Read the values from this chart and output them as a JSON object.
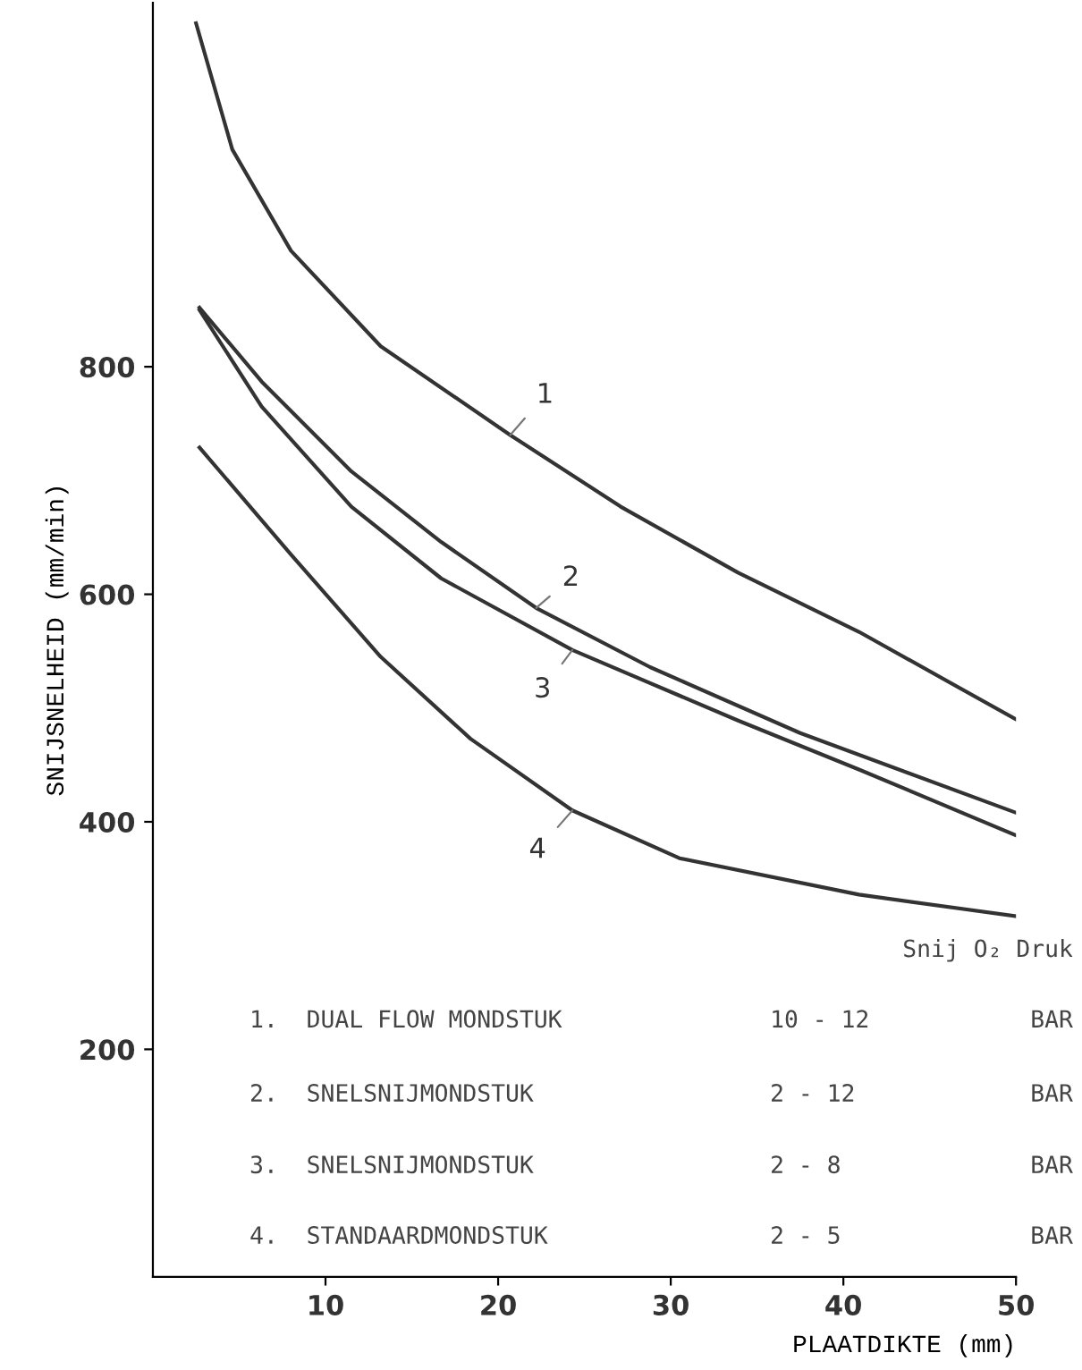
{
  "chart_data": {
    "type": "line",
    "xlabel": "PLAATDIKTE (mm)",
    "ylabel": "SNIJSNELHEID (mm/min)",
    "xlim": [
      0,
      50
    ],
    "xticks": [
      10,
      20,
      30,
      40,
      50
    ],
    "ylim": [
      0,
      1120
    ],
    "yticks": [
      200,
      400,
      600,
      800
    ],
    "grid": false,
    "legend": false,
    "marker": "none",
    "line_style": "solid",
    "series": [
      {
        "name": "1",
        "color": "#333333",
        "x": [
          2.5,
          4.6,
          8.0,
          13.2,
          20.7,
          27.1,
          33.9,
          40.9,
          50
        ],
        "values": [
          1102,
          991,
          902,
          818,
          740,
          677,
          619,
          567,
          490
        ]
      },
      {
        "name": "2",
        "color": "#333333",
        "x": [
          2.7,
          6.3,
          11.5,
          16.7,
          22.2,
          28.8,
          37.5,
          50
        ],
        "values": [
          852,
          787,
          708,
          646,
          588,
          536,
          478,
          408
        ]
      },
      {
        "name": "3",
        "color": "#333333",
        "x": [
          2.7,
          6.3,
          11.5,
          16.7,
          24.3,
          33.9,
          40.9,
          50
        ],
        "values": [
          850,
          765,
          677,
          614,
          551,
          489,
          446,
          388
        ]
      },
      {
        "name": "4",
        "color": "#333333",
        "x": [
          2.7,
          8.0,
          13.2,
          18.4,
          24.3,
          30.5,
          40.9,
          50
        ],
        "values": [
          729,
          635,
          545,
          473,
          410,
          368,
          336,
          317
        ]
      }
    ],
    "annotations": [
      "Snij O₂ Druk",
      "1.  DUAL FLOW MONDSTUK",
      "10 - 12",
      "BAR",
      "2.  SNELSNIJMONDSTUK",
      "2 - 12",
      "BAR",
      "3.  SNELSNIJMONDSTUK",
      "2 - 8",
      "BAR",
      "4.  STANDAARDMONDSTUK",
      "2 - 5",
      "BAR"
    ]
  }
}
